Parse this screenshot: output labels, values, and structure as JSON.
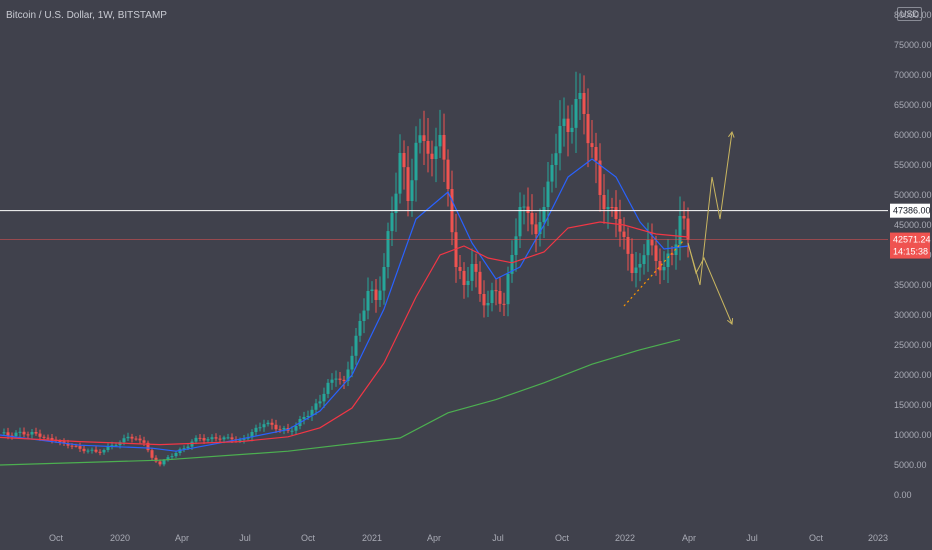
{
  "header": {
    "title": "Bitcoin / U.S. Dollar, 1W, BITSTAMP",
    "currency": "USD"
  },
  "price_tags": {
    "level": "47386.00",
    "last_price": "42571.24",
    "countdown": "14:15:38"
  },
  "colors": {
    "background": "#40414c",
    "up": "#26a69a",
    "down": "#ef5350",
    "ema_fast": "#2962ff",
    "ema_mid": "#f23645",
    "ma_slow": "#4caf50",
    "level_line": "#ffffff",
    "projection": "#c8b560",
    "trend_line": "#ff9800"
  },
  "chart_data": {
    "type": "candlestick",
    "title": "Bitcoin / U.S. Dollar, 1W, BITSTAMP",
    "yaxis": {
      "ylim": [
        0,
        80000
      ],
      "ticks": [
        "0.00",
        "5000.00",
        "10000.00",
        "15000.00",
        "20000.00",
        "25000.00",
        "30000.00",
        "35000.00",
        "40000.00",
        "45000.00",
        "50000.00",
        "55000.00",
        "60000.00",
        "65000.00",
        "70000.00",
        "75000.00",
        "80000.00"
      ],
      "scale": "linear"
    },
    "xaxis": {
      "ticks": [
        "Oct",
        "2020",
        "Apr",
        "Jul",
        "Oct",
        "2021",
        "Apr",
        "Jul",
        "Oct",
        "2022",
        "Apr",
        "Jul",
        "Oct",
        "2023"
      ]
    },
    "price_path": [
      [
        0,
        10300
      ],
      [
        2,
        9900
      ],
      [
        4,
        10400
      ],
      [
        6,
        10100
      ],
      [
        8,
        10500
      ],
      [
        10,
        9700
      ],
      [
        12,
        9500
      ],
      [
        14,
        9000
      ],
      [
        16,
        8600
      ],
      [
        18,
        8200
      ],
      [
        20,
        7700
      ],
      [
        22,
        7400
      ],
      [
        24,
        7200
      ],
      [
        26,
        7500
      ],
      [
        28,
        8300
      ],
      [
        30,
        8800
      ],
      [
        32,
        9700
      ],
      [
        34,
        9400
      ],
      [
        36,
        8700
      ],
      [
        38,
        6200
      ],
      [
        40,
        5100
      ],
      [
        42,
        6300
      ],
      [
        44,
        7000
      ],
      [
        46,
        7800
      ],
      [
        48,
        8900
      ],
      [
        50,
        9500
      ],
      [
        52,
        9300
      ],
      [
        54,
        9400
      ],
      [
        56,
        9600
      ],
      [
        58,
        9300
      ],
      [
        60,
        9200
      ],
      [
        62,
        9600
      ],
      [
        64,
        11200
      ],
      [
        66,
        11800
      ],
      [
        68,
        11700
      ],
      [
        70,
        10900
      ],
      [
        72,
        10700
      ],
      [
        74,
        11500
      ],
      [
        76,
        13000
      ],
      [
        78,
        14200
      ],
      [
        80,
        15600
      ],
      [
        82,
        18700
      ],
      [
        84,
        19400
      ],
      [
        86,
        19000
      ],
      [
        88,
        23200
      ],
      [
        90,
        29000
      ],
      [
        92,
        34000
      ],
      [
        94,
        32500
      ],
      [
        96,
        38000
      ],
      [
        98,
        47000
      ],
      [
        100,
        57000
      ],
      [
        102,
        49000
      ],
      [
        104,
        58700
      ],
      [
        106,
        59000
      ],
      [
        108,
        56000
      ],
      [
        110,
        60000
      ],
      [
        112,
        51000
      ],
      [
        114,
        38000
      ],
      [
        116,
        35000
      ],
      [
        118,
        38500
      ],
      [
        120,
        33500
      ],
      [
        122,
        32000
      ],
      [
        124,
        34000
      ],
      [
        126,
        31800
      ],
      [
        128,
        40000
      ],
      [
        130,
        48000
      ],
      [
        132,
        47000
      ],
      [
        134,
        43500
      ],
      [
        136,
        48000
      ],
      [
        138,
        55000
      ],
      [
        140,
        61500
      ],
      [
        142,
        60500
      ],
      [
        144,
        66000
      ],
      [
        146,
        63500
      ],
      [
        148,
        58000
      ],
      [
        150,
        50000
      ],
      [
        152,
        48000
      ],
      [
        154,
        46000
      ],
      [
        156,
        43000
      ],
      [
        158,
        37000
      ],
      [
        160,
        38500
      ],
      [
        162,
        42500
      ],
      [
        164,
        39000
      ],
      [
        166,
        38000
      ],
      [
        168,
        40000
      ],
      [
        170,
        46500
      ],
      [
        172,
        42571
      ]
    ],
    "series": [
      {
        "name": "",
        "type": "ema",
        "color": "#2962ff",
        "points": [
          [
            0,
            10000
          ],
          [
            20,
            8300
          ],
          [
            38,
            7800
          ],
          [
            44,
            7300
          ],
          [
            60,
            9300
          ],
          [
            72,
            10900
          ],
          [
            80,
            14000
          ],
          [
            88,
            20000
          ],
          [
            96,
            31000
          ],
          [
            104,
            46000
          ],
          [
            112,
            50500
          ],
          [
            118,
            42000
          ],
          [
            124,
            36000
          ],
          [
            130,
            38000
          ],
          [
            136,
            45000
          ],
          [
            142,
            53000
          ],
          [
            148,
            56000
          ],
          [
            154,
            53000
          ],
          [
            160,
            45500
          ],
          [
            166,
            41000
          ],
          [
            172,
            41500
          ]
        ]
      },
      {
        "name": "",
        "type": "ema",
        "color": "#f23645",
        "points": [
          [
            0,
            9600
          ],
          [
            20,
            8900
          ],
          [
            40,
            8400
          ],
          [
            60,
            8900
          ],
          [
            72,
            9700
          ],
          [
            80,
            11200
          ],
          [
            88,
            14500
          ],
          [
            96,
            22000
          ],
          [
            104,
            33000
          ],
          [
            110,
            40000
          ],
          [
            116,
            41500
          ],
          [
            122,
            39500
          ],
          [
            128,
            38700
          ],
          [
            136,
            40500
          ],
          [
            142,
            44500
          ],
          [
            150,
            45500
          ],
          [
            156,
            45000
          ],
          [
            164,
            43500
          ],
          [
            172,
            43000
          ]
        ]
      },
      {
        "name": "",
        "type": "ma",
        "color": "#4caf50",
        "points": [
          [
            0,
            5000
          ],
          [
            40,
            5800
          ],
          [
            72,
            7300
          ],
          [
            100,
            9500
          ],
          [
            112,
            13700
          ],
          [
            124,
            15900
          ],
          [
            136,
            18700
          ],
          [
            148,
            21800
          ],
          [
            160,
            24200
          ],
          [
            170,
            25900
          ]
        ]
      }
    ],
    "level": 47386,
    "last_price": 42571.24,
    "trend_line": [
      [
        156,
        31500
      ],
      [
        171,
        42500
      ]
    ],
    "projections": {
      "bullish": [
        [
          172,
          42000
        ],
        [
          175,
          35000
        ],
        [
          178,
          53000
        ],
        [
          180,
          46000
        ],
        [
          183,
          60500
        ]
      ],
      "bearish": [
        [
          172,
          42000
        ],
        [
          174,
          37000
        ],
        [
          176,
          39500
        ],
        [
          183,
          28500
        ]
      ]
    },
    "grid": false,
    "legend": "none"
  }
}
